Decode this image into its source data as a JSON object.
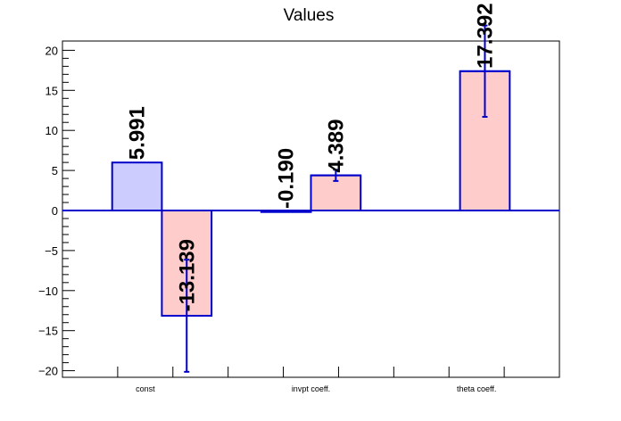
{
  "chart_data": {
    "type": "bar",
    "title": "Values",
    "xlabel": "",
    "ylabel": "",
    "ylim": [
      -21,
      21
    ],
    "yticks": [
      -20,
      -15,
      -10,
      -5,
      0,
      5,
      10,
      15,
      20
    ],
    "ytick_labels": [
      "−20",
      "−15",
      "−10",
      "−5",
      "0",
      "5",
      "10",
      "15",
      "20"
    ],
    "categories": [
      "const",
      "invpt coeff.",
      "theta coeff."
    ],
    "grid": false,
    "series": [
      {
        "color": "#ccccff",
        "values": [
          5.991,
          -0.19,
          null
        ],
        "errors": [
          null,
          null,
          null
        ],
        "labels": [
          "5.991",
          "-0.190",
          null
        ]
      },
      {
        "color": "#ffcccc",
        "values": [
          -13.139,
          4.389,
          17.392
        ],
        "errors": [
          7.0,
          0.7,
          5.7
        ],
        "labels": [
          "-13.139",
          "4.389",
          "17.392"
        ]
      }
    ]
  }
}
